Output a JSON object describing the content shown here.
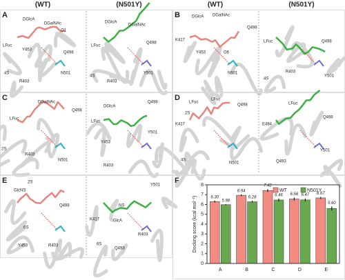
{
  "headers": [
    "(WT)",
    "(N501Y)",
    "(WT)",
    "(N501Y)"
  ],
  "panels": [
    {
      "letter": "A",
      "labels": [
        "DGlcA",
        "DGalNAc",
        "O1",
        "LFuc",
        "Y453",
        "4S",
        "R403",
        "N501",
        "Q498",
        "DGlcA",
        "DGalNAc",
        "LFuc",
        "4S",
        "R403",
        "Y501",
        "Q498"
      ]
    },
    {
      "letter": "B",
      "labels": [
        "DGlcA",
        "DGalNAc",
        "K417",
        "Y453",
        "O6",
        "N501",
        "Q498",
        "LFuc",
        "R403",
        "Q498",
        "Y501",
        "4S"
      ]
    },
    {
      "letter": "C",
      "labels": [
        "DGalNAc",
        "LFuc",
        "2S",
        "R403",
        "N501",
        "Q498",
        "DGlcA",
        "LFuc",
        "Y453",
        "R403",
        "Q498",
        "Y501"
      ]
    },
    {
      "letter": "D",
      "labels": [
        "LFuc",
        "LFuc",
        "K417",
        "Q498",
        "2S",
        "4S",
        "N501",
        "LFuc",
        "E484",
        "Q498",
        "Q493",
        "Y501"
      ]
    },
    {
      "letter": "E",
      "labels": [
        "2S",
        "GlcNS",
        "Q498",
        "6S",
        "Y453",
        "R403",
        "Y501",
        "NS",
        "GlcA",
        "K417",
        "6S",
        "Q493",
        "R403"
      ]
    }
  ],
  "chart_data": {
    "type": "bar",
    "letter": "F",
    "y_label": "Docking score (kcal mol⁻¹)",
    "categories": [
      "A",
      "B",
      "C",
      "D",
      "E"
    ],
    "ylim": [
      0,
      8
    ],
    "yticks": [
      0,
      1,
      2,
      3,
      4,
      5,
      6,
      7,
      8
    ],
    "legend_position": "upper right",
    "series": [
      {
        "name": "WT",
        "color": "#f28b82",
        "values": [
          6.3,
          6.94,
          7.42,
          6.56,
          6.67
        ],
        "value_labels": [
          "6.30",
          "6.94",
          "7.42",
          "6.56",
          "6.67"
        ],
        "errors": [
          0.1,
          0.1,
          0.15,
          0.15,
          0.1
        ]
      },
      {
        "name": "N501Y",
        "color": "#6aa84f",
        "values": [
          5.98,
          6.28,
          6.46,
          6.47,
          5.6
        ],
        "value_labels": [
          "5.98",
          "6.28",
          "6.46",
          "6.47",
          "5.60"
        ],
        "errors": [
          0.05,
          0.1,
          0.15,
          0.15,
          0.2
        ]
      }
    ]
  }
}
